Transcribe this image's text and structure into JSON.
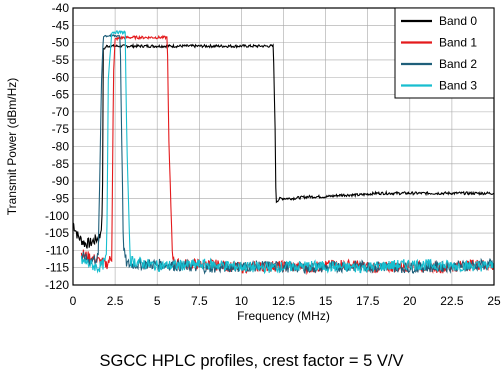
{
  "caption": "SGCC HPLC profiles, crest factor = 5 V/V",
  "chart_data": {
    "type": "line",
    "xlabel": "Frequency (MHz)",
    "ylabel": "Transmit Power (dBm/Hz)",
    "xlim": [
      0,
      25
    ],
    "ylim": [
      -120,
      -40
    ],
    "xticks": [
      0,
      2.5,
      5,
      7.5,
      10,
      12.5,
      15,
      17.5,
      20,
      22.5,
      25
    ],
    "yticks": [
      -40,
      -45,
      -50,
      -55,
      -60,
      -65,
      -70,
      -75,
      -80,
      -85,
      -90,
      -95,
      -100,
      -105,
      -110,
      -115,
      -120
    ],
    "grid": true,
    "legend_position": "top-right",
    "series": [
      {
        "name": "Band 0",
        "color": "#000000",
        "x": [
          0,
          0.3,
          0.7,
          1.0,
          1.3,
          1.6,
          1.75,
          1.8,
          2.0,
          4,
          6,
          8,
          10,
          11.9,
          12.0,
          12.05,
          12.3,
          13,
          14,
          15,
          16,
          17,
          18,
          19,
          20,
          21,
          22,
          23,
          24,
          25
        ],
        "y": [
          -102,
          -106,
          -108,
          -108,
          -107,
          -106,
          -100,
          -52,
          -51,
          -51,
          -51,
          -51,
          -51,
          -51,
          -75,
          -96,
          -95,
          -95,
          -94.5,
          -94.5,
          -94,
          -94,
          -93.5,
          -93.5,
          -93.5,
          -93.5,
          -93.5,
          -93.5,
          -93.5,
          -93.5
        ]
      },
      {
        "name": "Band 1",
        "color": "#e41a1c",
        "x": [
          0.5,
          1.0,
          1.5,
          2.0,
          2.3,
          2.4,
          2.5,
          3.0,
          4.0,
          5.0,
          5.6,
          5.7,
          5.9,
          6.0,
          8,
          10,
          12,
          14,
          16,
          18,
          20,
          22,
          24,
          25
        ],
        "y": [
          -111,
          -112,
          -113,
          -114,
          -112,
          -60,
          -49,
          -48.5,
          -48.5,
          -48.5,
          -48.5,
          -80,
          -110,
          -114,
          -114,
          -115,
          -114.5,
          -115,
          -114,
          -115,
          -114.5,
          -115,
          -114,
          -114.5
        ]
      },
      {
        "name": "Band 2",
        "color": "#1f5f7a",
        "x": [
          0.5,
          1.0,
          1.5,
          1.7,
          1.8,
          2.0,
          2.5,
          2.8,
          2.9,
          3.0,
          3.2,
          5,
          8,
          11,
          14,
          17,
          20,
          23,
          25
        ],
        "y": [
          -112,
          -113,
          -112,
          -60,
          -48,
          -48,
          -48,
          -48,
          -80,
          -110,
          -114,
          -114,
          -115,
          -114.5,
          -115,
          -114.5,
          -115,
          -114.5,
          -114
        ]
      },
      {
        "name": "Band 3",
        "color": "#17becf",
        "x": [
          0.5,
          1.0,
          1.5,
          1.8,
          2.0,
          2.1,
          2.3,
          2.7,
          3.0,
          3.1,
          3.2,
          3.4,
          5,
          8,
          11,
          14,
          17,
          20,
          23,
          25
        ],
        "y": [
          -113,
          -114,
          -115,
          -114,
          -112,
          -60,
          -47,
          -47,
          -47,
          -47,
          -80,
          -113,
          -114.5,
          -114,
          -115,
          -114.5,
          -115,
          -114,
          -114.5,
          -114.5
        ]
      }
    ]
  }
}
